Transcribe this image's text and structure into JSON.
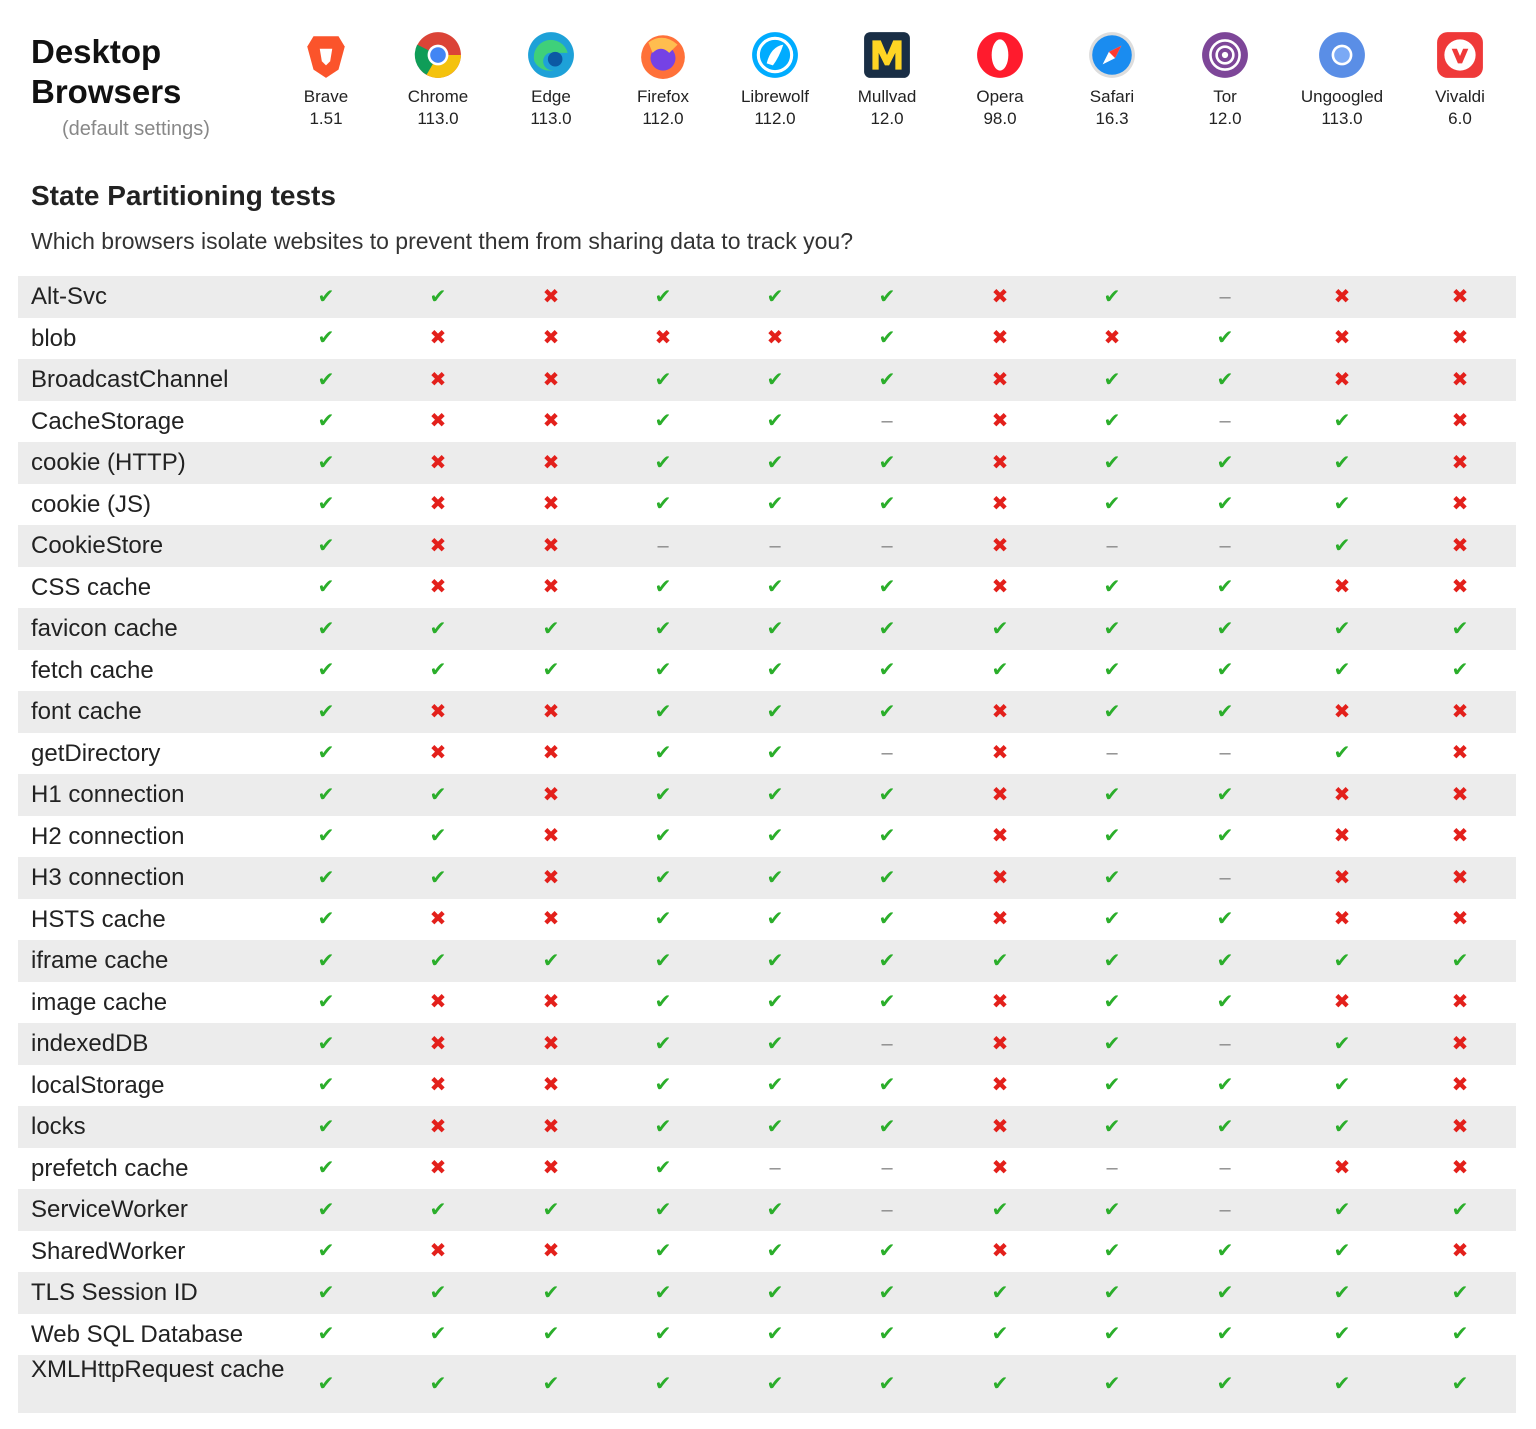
{
  "header": {
    "title": "Desktop Browsers",
    "subtitle": "(default settings)"
  },
  "section": {
    "title": "State Partitioning tests",
    "question": "Which browsers isolate websites to prevent them from sharing data to track you?"
  },
  "browsers": [
    {
      "name": "Brave",
      "version": "1.51"
    },
    {
      "name": "Chrome",
      "version": "113.0"
    },
    {
      "name": "Edge",
      "version": "113.0"
    },
    {
      "name": "Firefox",
      "version": "112.0"
    },
    {
      "name": "Librewolf",
      "version": "112.0"
    },
    {
      "name": "Mullvad",
      "version": "12.0"
    },
    {
      "name": "Opera",
      "version": "98.0"
    },
    {
      "name": "Safari",
      "version": "16.3"
    },
    {
      "name": "Tor",
      "version": "12.0"
    },
    {
      "name": "Ungoogled",
      "version": "113.0"
    },
    {
      "name": "Vivaldi",
      "version": "6.0"
    }
  ],
  "table": {
    "rows": [
      {
        "label": "Alt-Svc",
        "cells": [
          "✔",
          "✔",
          "✖",
          "✔",
          "✔",
          "✔",
          "✖",
          "✔",
          "–",
          "✖",
          "✖"
        ]
      },
      {
        "label": "blob",
        "cells": [
          "✔",
          "✖",
          "✖",
          "✖",
          "✖",
          "✔",
          "✖",
          "✖",
          "✔",
          "✖",
          "✖"
        ]
      },
      {
        "label": "BroadcastChannel",
        "cells": [
          "✔",
          "✖",
          "✖",
          "✔",
          "✔",
          "✔",
          "✖",
          "✔",
          "✔",
          "✖",
          "✖"
        ]
      },
      {
        "label": "CacheStorage",
        "cells": [
          "✔",
          "✖",
          "✖",
          "✔",
          "✔",
          "–",
          "✖",
          "✔",
          "–",
          "✔",
          "✖"
        ]
      },
      {
        "label": "cookie (HTTP)",
        "cells": [
          "✔",
          "✖",
          "✖",
          "✔",
          "✔",
          "✔",
          "✖",
          "✔",
          "✔",
          "✔",
          "✖"
        ]
      },
      {
        "label": "cookie (JS)",
        "cells": [
          "✔",
          "✖",
          "✖",
          "✔",
          "✔",
          "✔",
          "✖",
          "✔",
          "✔",
          "✔",
          "✖"
        ]
      },
      {
        "label": "CookieStore",
        "cells": [
          "✔",
          "✖",
          "✖",
          "–",
          "–",
          "–",
          "✖",
          "–",
          "–",
          "✔",
          "✖"
        ]
      },
      {
        "label": "CSS cache",
        "cells": [
          "✔",
          "✖",
          "✖",
          "✔",
          "✔",
          "✔",
          "✖",
          "✔",
          "✔",
          "✖",
          "✖"
        ]
      },
      {
        "label": "favicon cache",
        "cells": [
          "✔",
          "✔",
          "✔",
          "✔",
          "✔",
          "✔",
          "✔",
          "✔",
          "✔",
          "✔",
          "✔"
        ]
      },
      {
        "label": "fetch cache",
        "cells": [
          "✔",
          "✔",
          "✔",
          "✔",
          "✔",
          "✔",
          "✔",
          "✔",
          "✔",
          "✔",
          "✔"
        ]
      },
      {
        "label": "font cache",
        "cells": [
          "✔",
          "✖",
          "✖",
          "✔",
          "✔",
          "✔",
          "✖",
          "✔",
          "✔",
          "✖",
          "✖"
        ]
      },
      {
        "label": "getDirectory",
        "cells": [
          "✔",
          "✖",
          "✖",
          "✔",
          "✔",
          "–",
          "✖",
          "–",
          "–",
          "✔",
          "✖"
        ]
      },
      {
        "label": "H1 connection",
        "cells": [
          "✔",
          "✔",
          "✖",
          "✔",
          "✔",
          "✔",
          "✖",
          "✔",
          "✔",
          "✖",
          "✖"
        ]
      },
      {
        "label": "H2 connection",
        "cells": [
          "✔",
          "✔",
          "✖",
          "✔",
          "✔",
          "✔",
          "✖",
          "✔",
          "✔",
          "✖",
          "✖"
        ]
      },
      {
        "label": "H3 connection",
        "cells": [
          "✔",
          "✔",
          "✖",
          "✔",
          "✔",
          "✔",
          "✖",
          "✔",
          "–",
          "✖",
          "✖"
        ]
      },
      {
        "label": "HSTS cache",
        "cells": [
          "✔",
          "✖",
          "✖",
          "✔",
          "✔",
          "✔",
          "✖",
          "✔",
          "✔",
          "✖",
          "✖"
        ]
      },
      {
        "label": "iframe cache",
        "cells": [
          "✔",
          "✔",
          "✔",
          "✔",
          "✔",
          "✔",
          "✔",
          "✔",
          "✔",
          "✔",
          "✔"
        ]
      },
      {
        "label": "image cache",
        "cells": [
          "✔",
          "✖",
          "✖",
          "✔",
          "✔",
          "✔",
          "✖",
          "✔",
          "✔",
          "✖",
          "✖"
        ]
      },
      {
        "label": "indexedDB",
        "cells": [
          "✔",
          "✖",
          "✖",
          "✔",
          "✔",
          "–",
          "✖",
          "✔",
          "–",
          "✔",
          "✖"
        ]
      },
      {
        "label": "localStorage",
        "cells": [
          "✔",
          "✖",
          "✖",
          "✔",
          "✔",
          "✔",
          "✖",
          "✔",
          "✔",
          "✔",
          "✖"
        ]
      },
      {
        "label": "locks",
        "cells": [
          "✔",
          "✖",
          "✖",
          "✔",
          "✔",
          "✔",
          "✖",
          "✔",
          "✔",
          "✔",
          "✖"
        ]
      },
      {
        "label": "prefetch cache",
        "cells": [
          "✔",
          "✖",
          "✖",
          "✔",
          "–",
          "–",
          "✖",
          "–",
          "–",
          "✖",
          "✖"
        ]
      },
      {
        "label": "ServiceWorker",
        "cells": [
          "✔",
          "✔",
          "✔",
          "✔",
          "✔",
          "–",
          "✔",
          "✔",
          "–",
          "✔",
          "✔"
        ]
      },
      {
        "label": "SharedWorker",
        "cells": [
          "✔",
          "✖",
          "✖",
          "✔",
          "✔",
          "✔",
          "✖",
          "✔",
          "✔",
          "✔",
          "✖"
        ]
      },
      {
        "label": "TLS Session ID",
        "cells": [
          "✔",
          "✔",
          "✔",
          "✔",
          "✔",
          "✔",
          "✔",
          "✔",
          "✔",
          "✔",
          "✔"
        ]
      },
      {
        "label": "Web SQL Database",
        "cells": [
          "✔",
          "✔",
          "✔",
          "✔",
          "✔",
          "✔",
          "✔",
          "✔",
          "✔",
          "✔",
          "✔"
        ]
      },
      {
        "label": "XMLHttpRequest cache",
        "cells": [
          "✔",
          "✔",
          "✔",
          "✔",
          "✔",
          "✔",
          "✔",
          "✔",
          "✔",
          "✔",
          "✔"
        ]
      }
    ]
  }
}
